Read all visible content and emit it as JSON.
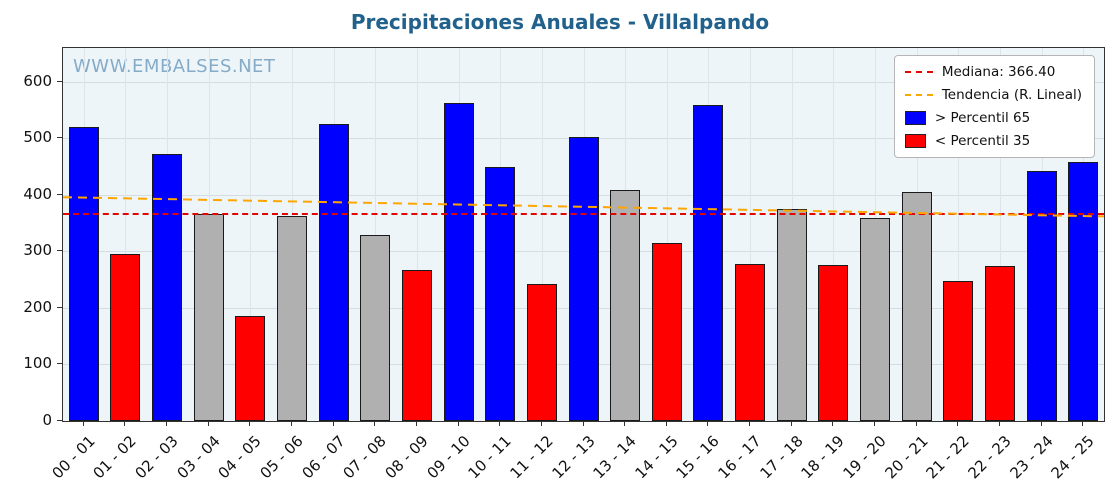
{
  "page": {
    "title": "Precipitaciones Anuales - Villalpando",
    "watermark": "WWW.EMBALSES.NET"
  },
  "chart_data": {
    "type": "bar",
    "title": "Precipitaciones Anuales - Villalpando",
    "xlabel": "",
    "ylabel": "",
    "ylim": [
      0,
      660
    ],
    "yticks": [
      0,
      100,
      200,
      300,
      400,
      500,
      600
    ],
    "grid": true,
    "categories": [
      "00 - 01",
      "01 - 02",
      "02 - 03",
      "03 - 04",
      "04 - 05",
      "05 - 06",
      "06 - 07",
      "07 - 08",
      "08 - 09",
      "09 - 10",
      "10 - 11",
      "11 - 12",
      "12 - 13",
      "13 - 14",
      "14 - 15",
      "15 - 16",
      "16 - 17",
      "17 - 18",
      "18 - 19",
      "19 - 20",
      "20 - 21",
      "21 - 22",
      "22 - 23",
      "23 - 24",
      "24 - 25"
    ],
    "values": [
      520,
      295,
      473,
      367,
      185,
      362,
      525,
      330,
      267,
      562,
      450,
      242,
      502,
      408,
      315,
      560,
      278,
      375,
      276,
      360,
      405,
      248,
      275,
      442,
      458
    ],
    "bar_classes": [
      "above",
      "below",
      "above",
      "mid",
      "below",
      "mid",
      "above",
      "mid",
      "below",
      "above",
      "above",
      "below",
      "above",
      "mid",
      "below",
      "above",
      "below",
      "mid",
      "below",
      "mid",
      "mid",
      "below",
      "below",
      "above",
      "above"
    ],
    "class_colors": {
      "above": "#0000ff",
      "mid": "#b0b0b0",
      "below": "#ff0000"
    },
    "median": {
      "value": 366.4,
      "color": "#e10600"
    },
    "trend": {
      "start": 396,
      "end": 362,
      "color": "#ffa500"
    },
    "legend": [
      {
        "type": "line",
        "color": "#e10600",
        "label": "Mediana: 366.40"
      },
      {
        "type": "line",
        "color": "#ffa500",
        "label": "Tendencia (R. Lineal)"
      },
      {
        "type": "patch",
        "color": "#0000ff",
        "label": " > Percentil 65"
      },
      {
        "type": "patch",
        "color": "#ff0000",
        "label": " < Percentil 35"
      }
    ],
    "legend_position": "upper right"
  }
}
